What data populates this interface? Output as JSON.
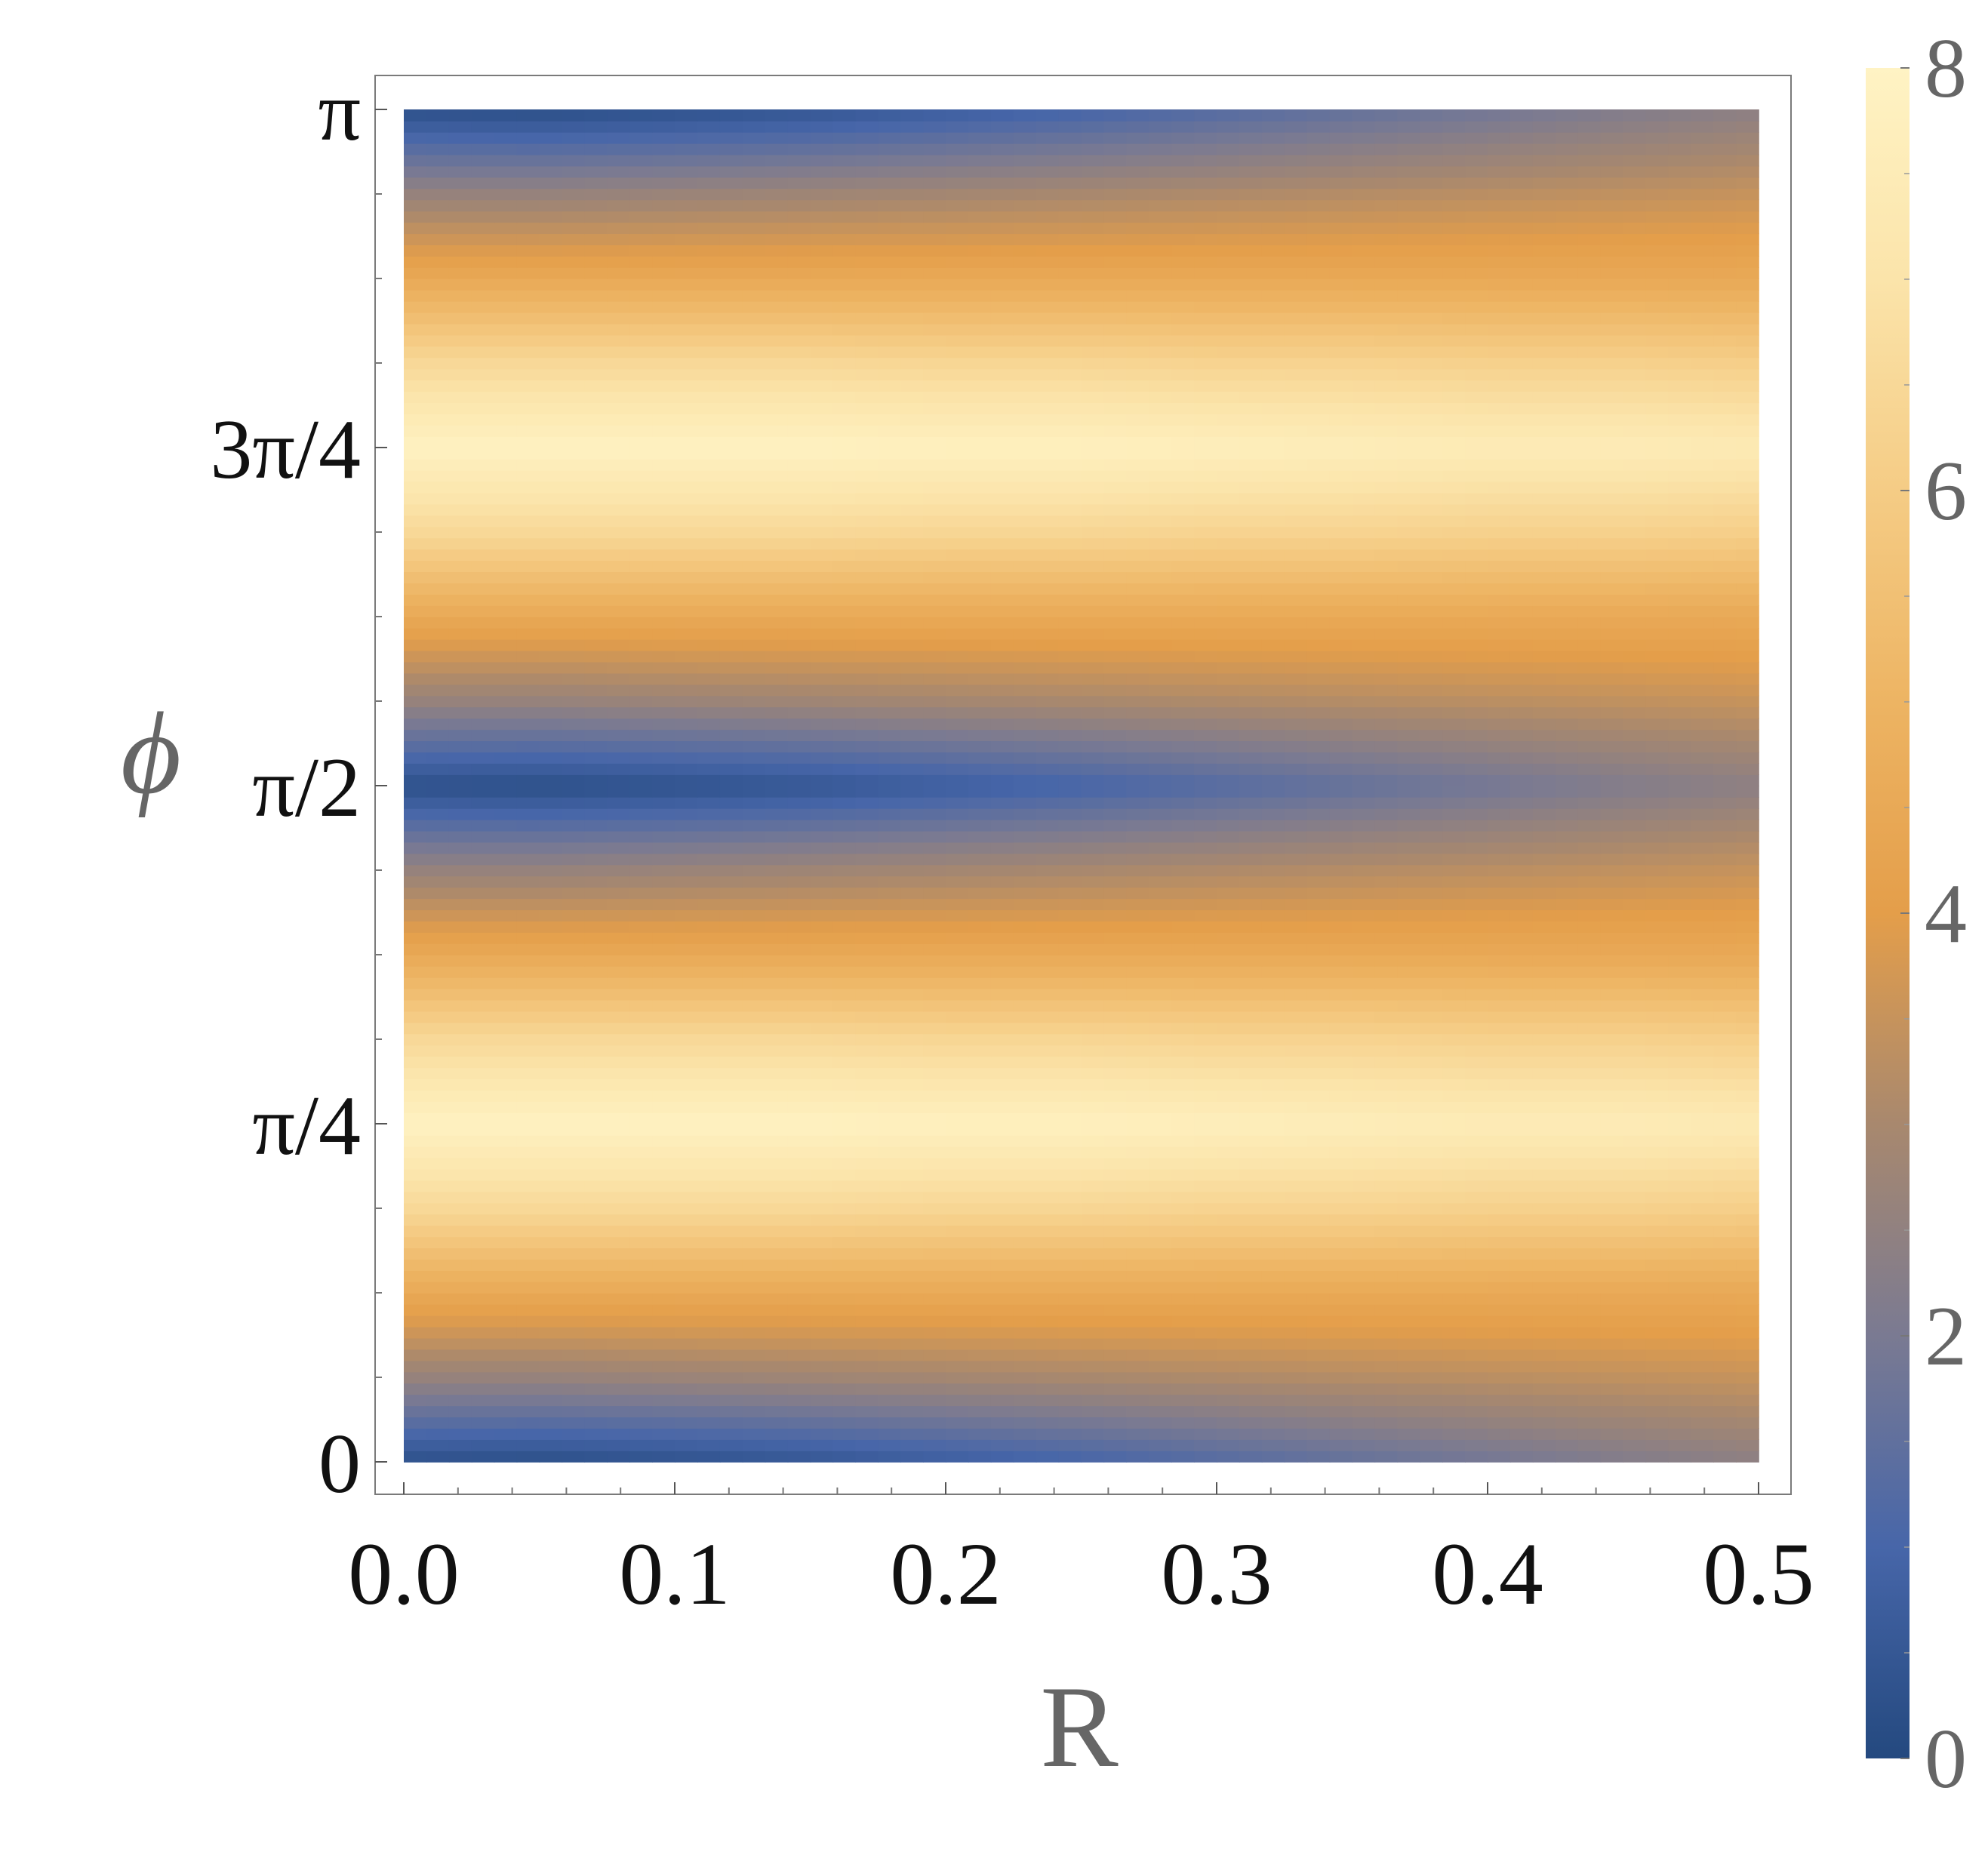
{
  "chart_data": {
    "type": "heatmap",
    "title": "",
    "xlabel": "R",
    "ylabel": "ϕ",
    "xlim": [
      0.0,
      0.5
    ],
    "ylim": [
      0,
      3.14159
    ],
    "x_ticks": [
      {
        "value": 0.0,
        "label": "0.0"
      },
      {
        "value": 0.1,
        "label": "0.1"
      },
      {
        "value": 0.2,
        "label": "0.2"
      },
      {
        "value": 0.3,
        "label": "0.3"
      },
      {
        "value": 0.4,
        "label": "0.4"
      },
      {
        "value": 0.5,
        "label": "0.5"
      }
    ],
    "y_ticks": [
      {
        "value": 0,
        "label": "0"
      },
      {
        "value": 0.785398,
        "label": "π/4"
      },
      {
        "value": 1.570796,
        "label": "π/2"
      },
      {
        "value": 2.356194,
        "label": "3π/4"
      },
      {
        "value": 3.141593,
        "label": "π"
      }
    ],
    "colorbar": {
      "range": [
        0,
        8
      ],
      "ticks": [
        {
          "value": 0,
          "label": "0"
        },
        {
          "value": 2,
          "label": "2"
        },
        {
          "value": 4,
          "label": "4"
        },
        {
          "value": 6,
          "label": "6"
        },
        {
          "value": 8,
          "label": "8"
        }
      ],
      "colormap": [
        {
          "value": 0,
          "color": "#24497f"
        },
        {
          "value": 1,
          "color": "#4766a9"
        },
        {
          "value": 2,
          "color": "#7a7a92"
        },
        {
          "value": 3,
          "color": "#a8886e"
        },
        {
          "value": 4,
          "color": "#e49e4a"
        },
        {
          "value": 5,
          "color": "#edb463"
        },
        {
          "value": 6,
          "color": "#f5cc85"
        },
        {
          "value": 7,
          "color": "#fbe4aa"
        },
        {
          "value": 8,
          "color": "#fff3c4"
        }
      ]
    },
    "x": [
      0.0,
      0.05,
      0.1,
      0.15,
      0.2,
      0.25,
      0.3,
      0.35,
      0.4,
      0.45,
      0.5
    ],
    "y": [
      0,
      0.19635,
      0.392699,
      0.589049,
      0.785398,
      0.981748,
      1.178097,
      1.374447,
      1.570796,
      1.767146,
      1.963495,
      2.159845,
      2.356194,
      2.552544,
      2.748894,
      2.945243,
      3.141593
    ],
    "z": [
      [
        0.25,
        0.2,
        0.3,
        0.45,
        0.7,
        0.95,
        1.25,
        1.55,
        1.85,
        2.15,
        2.4
      ],
      [
        2.6,
        2.6,
        2.7,
        2.8,
        2.9,
        3.0,
        3.1,
        3.2,
        3.3,
        3.4,
        3.5
      ],
      [
        4.5,
        4.5,
        4.5,
        4.5,
        4.5,
        4.5,
        4.5,
        4.5,
        4.5,
        4.5,
        4.5
      ],
      [
        6.5,
        6.5,
        6.5,
        6.5,
        6.4,
        6.4,
        6.3,
        6.3,
        6.2,
        6.2,
        6.1
      ],
      [
        7.9,
        7.9,
        7.9,
        7.9,
        7.8,
        7.8,
        7.7,
        7.6,
        7.5,
        7.5,
        7.4
      ],
      [
        6.5,
        6.5,
        6.5,
        6.5,
        6.4,
        6.4,
        6.3,
        6.3,
        6.2,
        6.2,
        6.1
      ],
      [
        4.5,
        4.5,
        4.5,
        4.5,
        4.5,
        4.5,
        4.5,
        4.5,
        4.5,
        4.5,
        4.5
      ],
      [
        2.6,
        2.6,
        2.7,
        2.8,
        2.9,
        3.0,
        3.1,
        3.2,
        3.3,
        3.4,
        3.5
      ],
      [
        0.25,
        0.2,
        0.3,
        0.45,
        0.7,
        0.95,
        1.25,
        1.55,
        1.85,
        2.15,
        2.4
      ],
      [
        2.6,
        2.6,
        2.7,
        2.8,
        2.9,
        3.0,
        3.1,
        3.2,
        3.3,
        3.4,
        3.5
      ],
      [
        4.5,
        4.5,
        4.5,
        4.5,
        4.5,
        4.5,
        4.5,
        4.5,
        4.5,
        4.5,
        4.5
      ],
      [
        6.5,
        6.5,
        6.5,
        6.5,
        6.4,
        6.4,
        6.3,
        6.3,
        6.2,
        6.2,
        6.1
      ],
      [
        7.9,
        7.9,
        7.9,
        7.9,
        7.8,
        7.8,
        7.7,
        7.6,
        7.5,
        7.5,
        7.4
      ],
      [
        6.5,
        6.5,
        6.5,
        6.5,
        6.4,
        6.4,
        6.3,
        6.3,
        6.2,
        6.2,
        6.1
      ],
      [
        4.5,
        4.5,
        4.5,
        4.5,
        4.5,
        4.5,
        4.5,
        4.5,
        4.5,
        4.5,
        4.5
      ],
      [
        2.6,
        2.6,
        2.7,
        2.8,
        2.9,
        3.0,
        3.1,
        3.2,
        3.3,
        3.4,
        3.5
      ],
      [
        0.25,
        0.2,
        0.3,
        0.45,
        0.7,
        0.95,
        1.25,
        1.55,
        1.85,
        2.15,
        2.4
      ]
    ]
  }
}
